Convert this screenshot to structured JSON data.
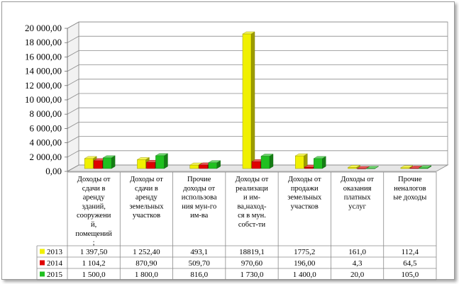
{
  "chart_data": {
    "type": "bar",
    "ylim": [
      0,
      20000
    ],
    "y_ticks": [
      "0,00",
      "2 000,00",
      "4 000,00",
      "6 000,00",
      "8 000,00",
      "10 000,00",
      "12 000,00",
      "14 000,00",
      "16 000,00",
      "18 000,00",
      "20 000,00"
    ],
    "y_tick_values": [
      0,
      2000,
      4000,
      6000,
      8000,
      10000,
      12000,
      14000,
      16000,
      18000,
      20000
    ],
    "grid": true,
    "legend": "table-left",
    "categories": [
      [
        "Доходы от",
        "сдачи в",
        "аренду",
        "зданий,",
        "сооружени",
        "й,",
        "помещений",
        ";"
      ],
      [
        "Доходы от",
        "сдачи в",
        "аренду",
        "земельных",
        "участков"
      ],
      [
        "Прочие",
        "доходы от",
        "использова",
        "ния мун-го",
        "им-ва"
      ],
      [
        "Доходы от",
        "реализаци",
        "и им-",
        "ва,наход-",
        "ся в мун.",
        "собст-ти"
      ],
      [
        "Доходы от",
        "продажи",
        "земельных",
        "участков"
      ],
      [
        "Доходы от",
        "оказания",
        "платных",
        "услуг"
      ],
      [
        "Прочие",
        "неналогов",
        "ые доходы"
      ]
    ],
    "series": [
      {
        "name": "2013",
        "color": "#f0f000",
        "values": [
          1397.5,
          1252.4,
          493.1,
          18819.1,
          1775.2,
          161.0,
          112.4
        ],
        "labels": [
          "1 397,50",
          "1 252,40",
          "493,1",
          "18819,1",
          "1775,2",
          "161,0",
          "112,4"
        ]
      },
      {
        "name": "2014",
        "color": "#e00000",
        "values": [
          1104.2,
          870.9,
          509.7,
          970.6,
          196.0,
          4.3,
          64.5
        ],
        "labels": [
          "1 104,2",
          "870,90",
          "509,70",
          "970,60",
          "196,00",
          "4,3",
          "64,5"
        ]
      },
      {
        "name": "2015",
        "color": "#20c020",
        "values": [
          1500.0,
          1800.0,
          816.0,
          1730.0,
          1400.0,
          20.0,
          105.0
        ],
        "labels": [
          "1 500,0",
          "1 800,0",
          "816,0",
          "1 730,0",
          "1 400,0",
          "20,0",
          "105,0"
        ]
      }
    ]
  }
}
